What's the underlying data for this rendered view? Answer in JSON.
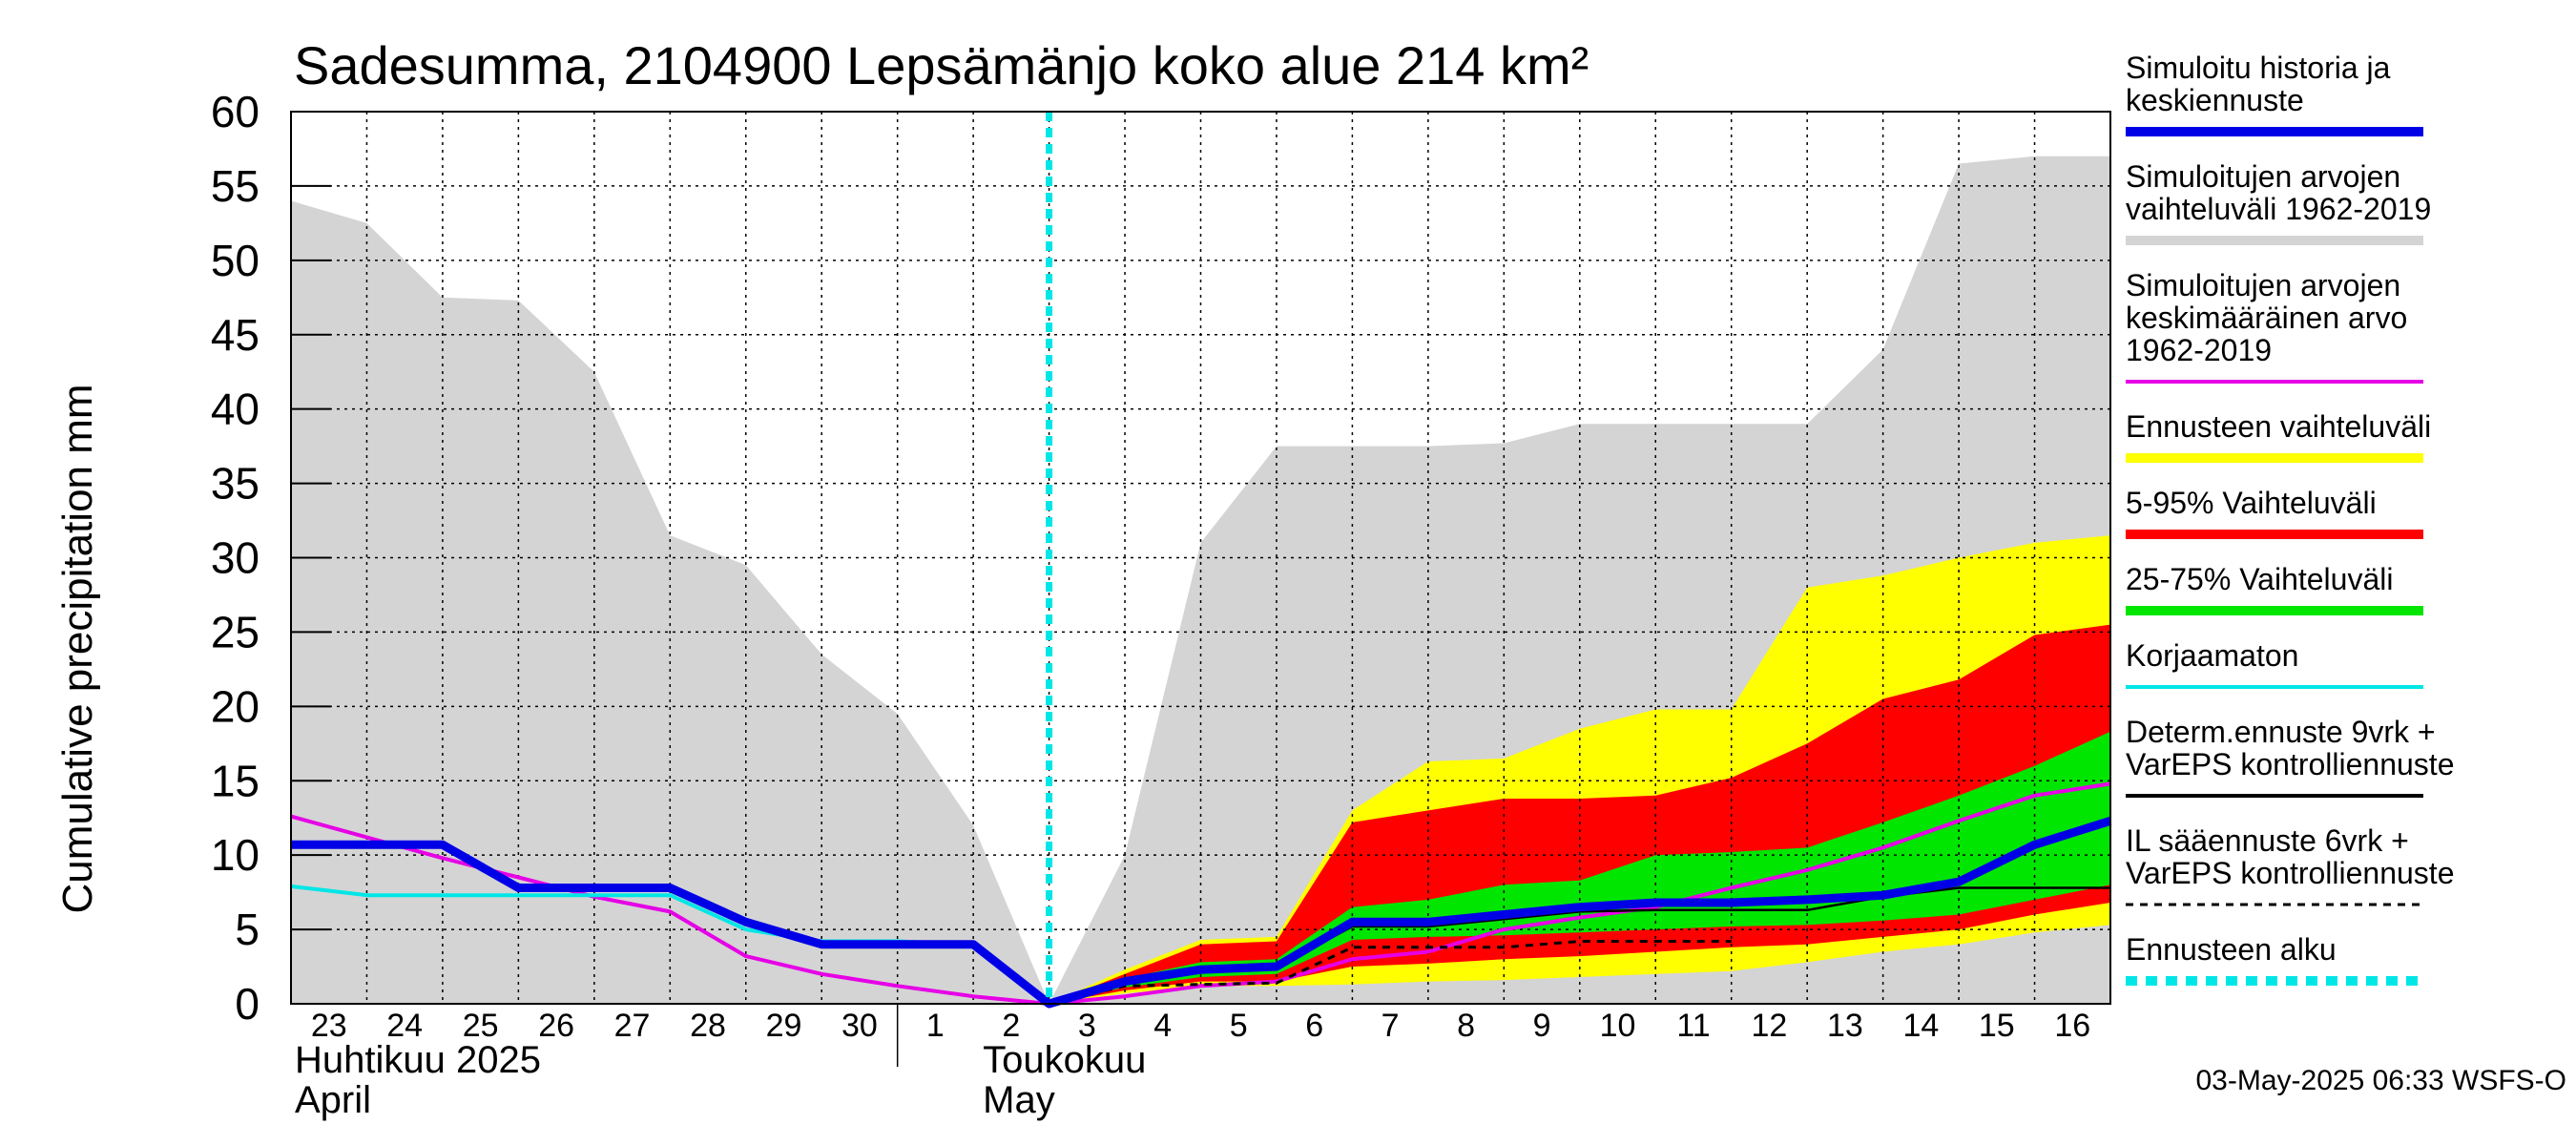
{
  "chart_data": {
    "type": "area",
    "title": "Sadesumma, 2104900 Lepsämänjo koko alue 214 km²",
    "ylabel": "Cumulative precipitation    mm",
    "ylim": [
      0,
      60
    ],
    "yticks": [
      0,
      5,
      10,
      15,
      20,
      25,
      30,
      35,
      40,
      45,
      50,
      55,
      60
    ],
    "x_day_labels": [
      "23",
      "24",
      "25",
      "26",
      "27",
      "28",
      "29",
      "30",
      "1",
      "2",
      "3",
      "4",
      "5",
      "6",
      "7",
      "8",
      "9",
      "10",
      "11",
      "12",
      "13",
      "14",
      "15",
      "16"
    ],
    "month_labels": [
      {
        "fi": "Huhtikuu  2025",
        "en": "April"
      },
      {
        "fi": "Toukokuu",
        "en": "May"
      }
    ],
    "timestamp": "03-May-2025 06:33 WSFS-O",
    "forecast_start_day": 10,
    "series": {
      "historical_range_upper": {
        "x": [
          0,
          1,
          2,
          3,
          4,
          5,
          6,
          7,
          8,
          9,
          10,
          11,
          12,
          13,
          14,
          15,
          16,
          17,
          18,
          19,
          20,
          21,
          22,
          23,
          24
        ],
        "y": [
          54,
          52.5,
          47.5,
          47.3,
          42.5,
          31.5,
          29.5,
          23.5,
          19.5,
          12,
          0,
          10,
          31,
          37.5,
          37.5,
          37.5,
          37.7,
          39,
          39,
          39,
          39,
          44,
          56.5,
          57,
          57
        ]
      },
      "ensemble_full_upper": {
        "x": [
          10,
          11,
          12,
          13,
          14,
          15,
          16,
          17,
          18,
          19,
          20,
          21,
          22,
          23,
          24
        ],
        "y": [
          0,
          2.3,
          4.3,
          4.5,
          13,
          16.3,
          16.5,
          18.5,
          19.8,
          19.8,
          28,
          28.8,
          30,
          31,
          31.5
        ]
      },
      "ensemble_full_lower": {
        "x": [
          10,
          11,
          12,
          13,
          14,
          15,
          16,
          17,
          18,
          19,
          20,
          21,
          22,
          23,
          24
        ],
        "y": [
          0,
          0.7,
          1.2,
          1.2,
          1.3,
          1.5,
          1.6,
          1.8,
          2,
          2.2,
          2.8,
          3.5,
          4,
          4.8,
          5.3
        ]
      },
      "p5_95_upper": {
        "x": [
          10,
          11,
          12,
          13,
          14,
          15,
          16,
          17,
          18,
          19,
          20,
          21,
          22,
          23,
          24
        ],
        "y": [
          0,
          2,
          4,
          4.2,
          12.2,
          13,
          13.8,
          13.8,
          14,
          15.2,
          17.5,
          20.5,
          21.8,
          24.8,
          25.5
        ]
      },
      "p5_95_lower": {
        "x": [
          10,
          11,
          12,
          13,
          14,
          15,
          16,
          17,
          18,
          19,
          20,
          21,
          22,
          23,
          24
        ],
        "y": [
          0,
          0.9,
          1.5,
          1.5,
          2.5,
          2.7,
          3,
          3.2,
          3.5,
          3.8,
          4,
          4.5,
          5,
          6,
          6.8
        ]
      },
      "p25_75_upper": {
        "x": [
          10,
          11,
          12,
          13,
          14,
          15,
          16,
          17,
          18,
          19,
          20,
          21,
          22,
          23,
          24
        ],
        "y": [
          0,
          1.7,
          2.8,
          3,
          6.5,
          7,
          8,
          8.3,
          10,
          10.2,
          10.5,
          12.2,
          14,
          16,
          18.3
        ]
      },
      "p25_75_lower": {
        "x": [
          10,
          11,
          12,
          13,
          14,
          15,
          16,
          17,
          18,
          19,
          20,
          21,
          22,
          23,
          24
        ],
        "y": [
          0,
          1.1,
          1.8,
          2,
          4.3,
          4.5,
          4.6,
          4.8,
          5,
          5.2,
          5.3,
          5.6,
          6,
          7,
          8
        ]
      },
      "simulated_history_and_median": {
        "x": [
          0,
          1,
          2,
          3,
          4,
          5,
          6,
          7,
          8,
          9,
          10,
          11,
          12,
          13,
          14,
          15,
          16,
          17,
          18,
          19,
          20,
          21,
          22,
          23,
          24
        ],
        "y": [
          10.7,
          10.7,
          10.7,
          7.8,
          7.8,
          7.8,
          5.5,
          4,
          4,
          4,
          0,
          1.5,
          2.3,
          2.5,
          5.5,
          5.5,
          6,
          6.5,
          6.8,
          6.8,
          7,
          7.3,
          8.2,
          10.7,
          12.3
        ]
      },
      "historical_mean": {
        "x": [
          0,
          1,
          2,
          3,
          4,
          5,
          6,
          7,
          8,
          9,
          10,
          11,
          12,
          13,
          14,
          15,
          16,
          17,
          18,
          19,
          20,
          21,
          22,
          23,
          24
        ],
        "y": [
          12.6,
          11.2,
          9.8,
          8.5,
          7.2,
          6.2,
          3.2,
          2,
          1.2,
          0.5,
          0,
          0.5,
          1.2,
          1.5,
          3,
          3.5,
          5,
          5.8,
          6.5,
          7.8,
          9,
          10.5,
          12.3,
          14,
          14.8
        ]
      },
      "uncorrected": {
        "x": [
          0,
          1,
          2,
          3,
          4,
          5,
          6,
          7,
          8,
          9
        ],
        "y": [
          7.9,
          7.3,
          7.3,
          7.3,
          7.3,
          7.3,
          5,
          4.2,
          4.2,
          4
        ]
      },
      "deterministic_control": {
        "x": [
          10,
          11,
          12,
          13,
          14,
          15,
          16,
          17,
          18,
          19,
          20,
          21,
          22,
          23,
          24
        ],
        "y": [
          0,
          1.5,
          2.3,
          2.5,
          5.2,
          5.2,
          5.7,
          6.2,
          6.3,
          6.3,
          6.3,
          7.2,
          7.8,
          7.8,
          7.8
        ]
      },
      "il_forecast_control": {
        "x": [
          10,
          11,
          12,
          13,
          14,
          15,
          16,
          17,
          18,
          19
        ],
        "y": [
          0,
          1.2,
          1.3,
          1.4,
          3.8,
          3.8,
          3.8,
          4.2,
          4.2,
          4.2
        ]
      }
    },
    "legend": [
      {
        "label": "Simuloitu historia ja\nkeskiennuste",
        "color": "#0000e6",
        "style": "thick"
      },
      {
        "label": "Simuloitujen arvojen\nvaihteluväli 1962-2019",
        "color": "#d4d4d4",
        "style": "thick"
      },
      {
        "label": "Simuloitujen arvojen\nkeskimääräinen arvo\n    1962-2019",
        "color": "#e600e6",
        "style": "line"
      },
      {
        "label": "Ennusteen vaihteluväli",
        "color": "#ffff00",
        "style": "thick"
      },
      {
        "label": "5-95% Vaihteluväli",
        "color": "#ff0000",
        "style": "thick"
      },
      {
        "label": "25-75% Vaihteluväli",
        "color": "#00e600",
        "style": "thick"
      },
      {
        "label": "Korjaamaton",
        "color": "#00e6e6",
        "style": "line"
      },
      {
        "label": "Determ.ennuste 9vrk +\nVarEPS kontrolliennuste",
        "color": "#000000",
        "style": "line"
      },
      {
        "label": "IL sääennuste 6vrk  +\n  VarEPS kontrolliennuste",
        "color": "#000000",
        "style": "dashed"
      },
      {
        "label": "Ennusteen alku",
        "color": "#00e6e6",
        "style": "dotted-thick"
      }
    ]
  }
}
